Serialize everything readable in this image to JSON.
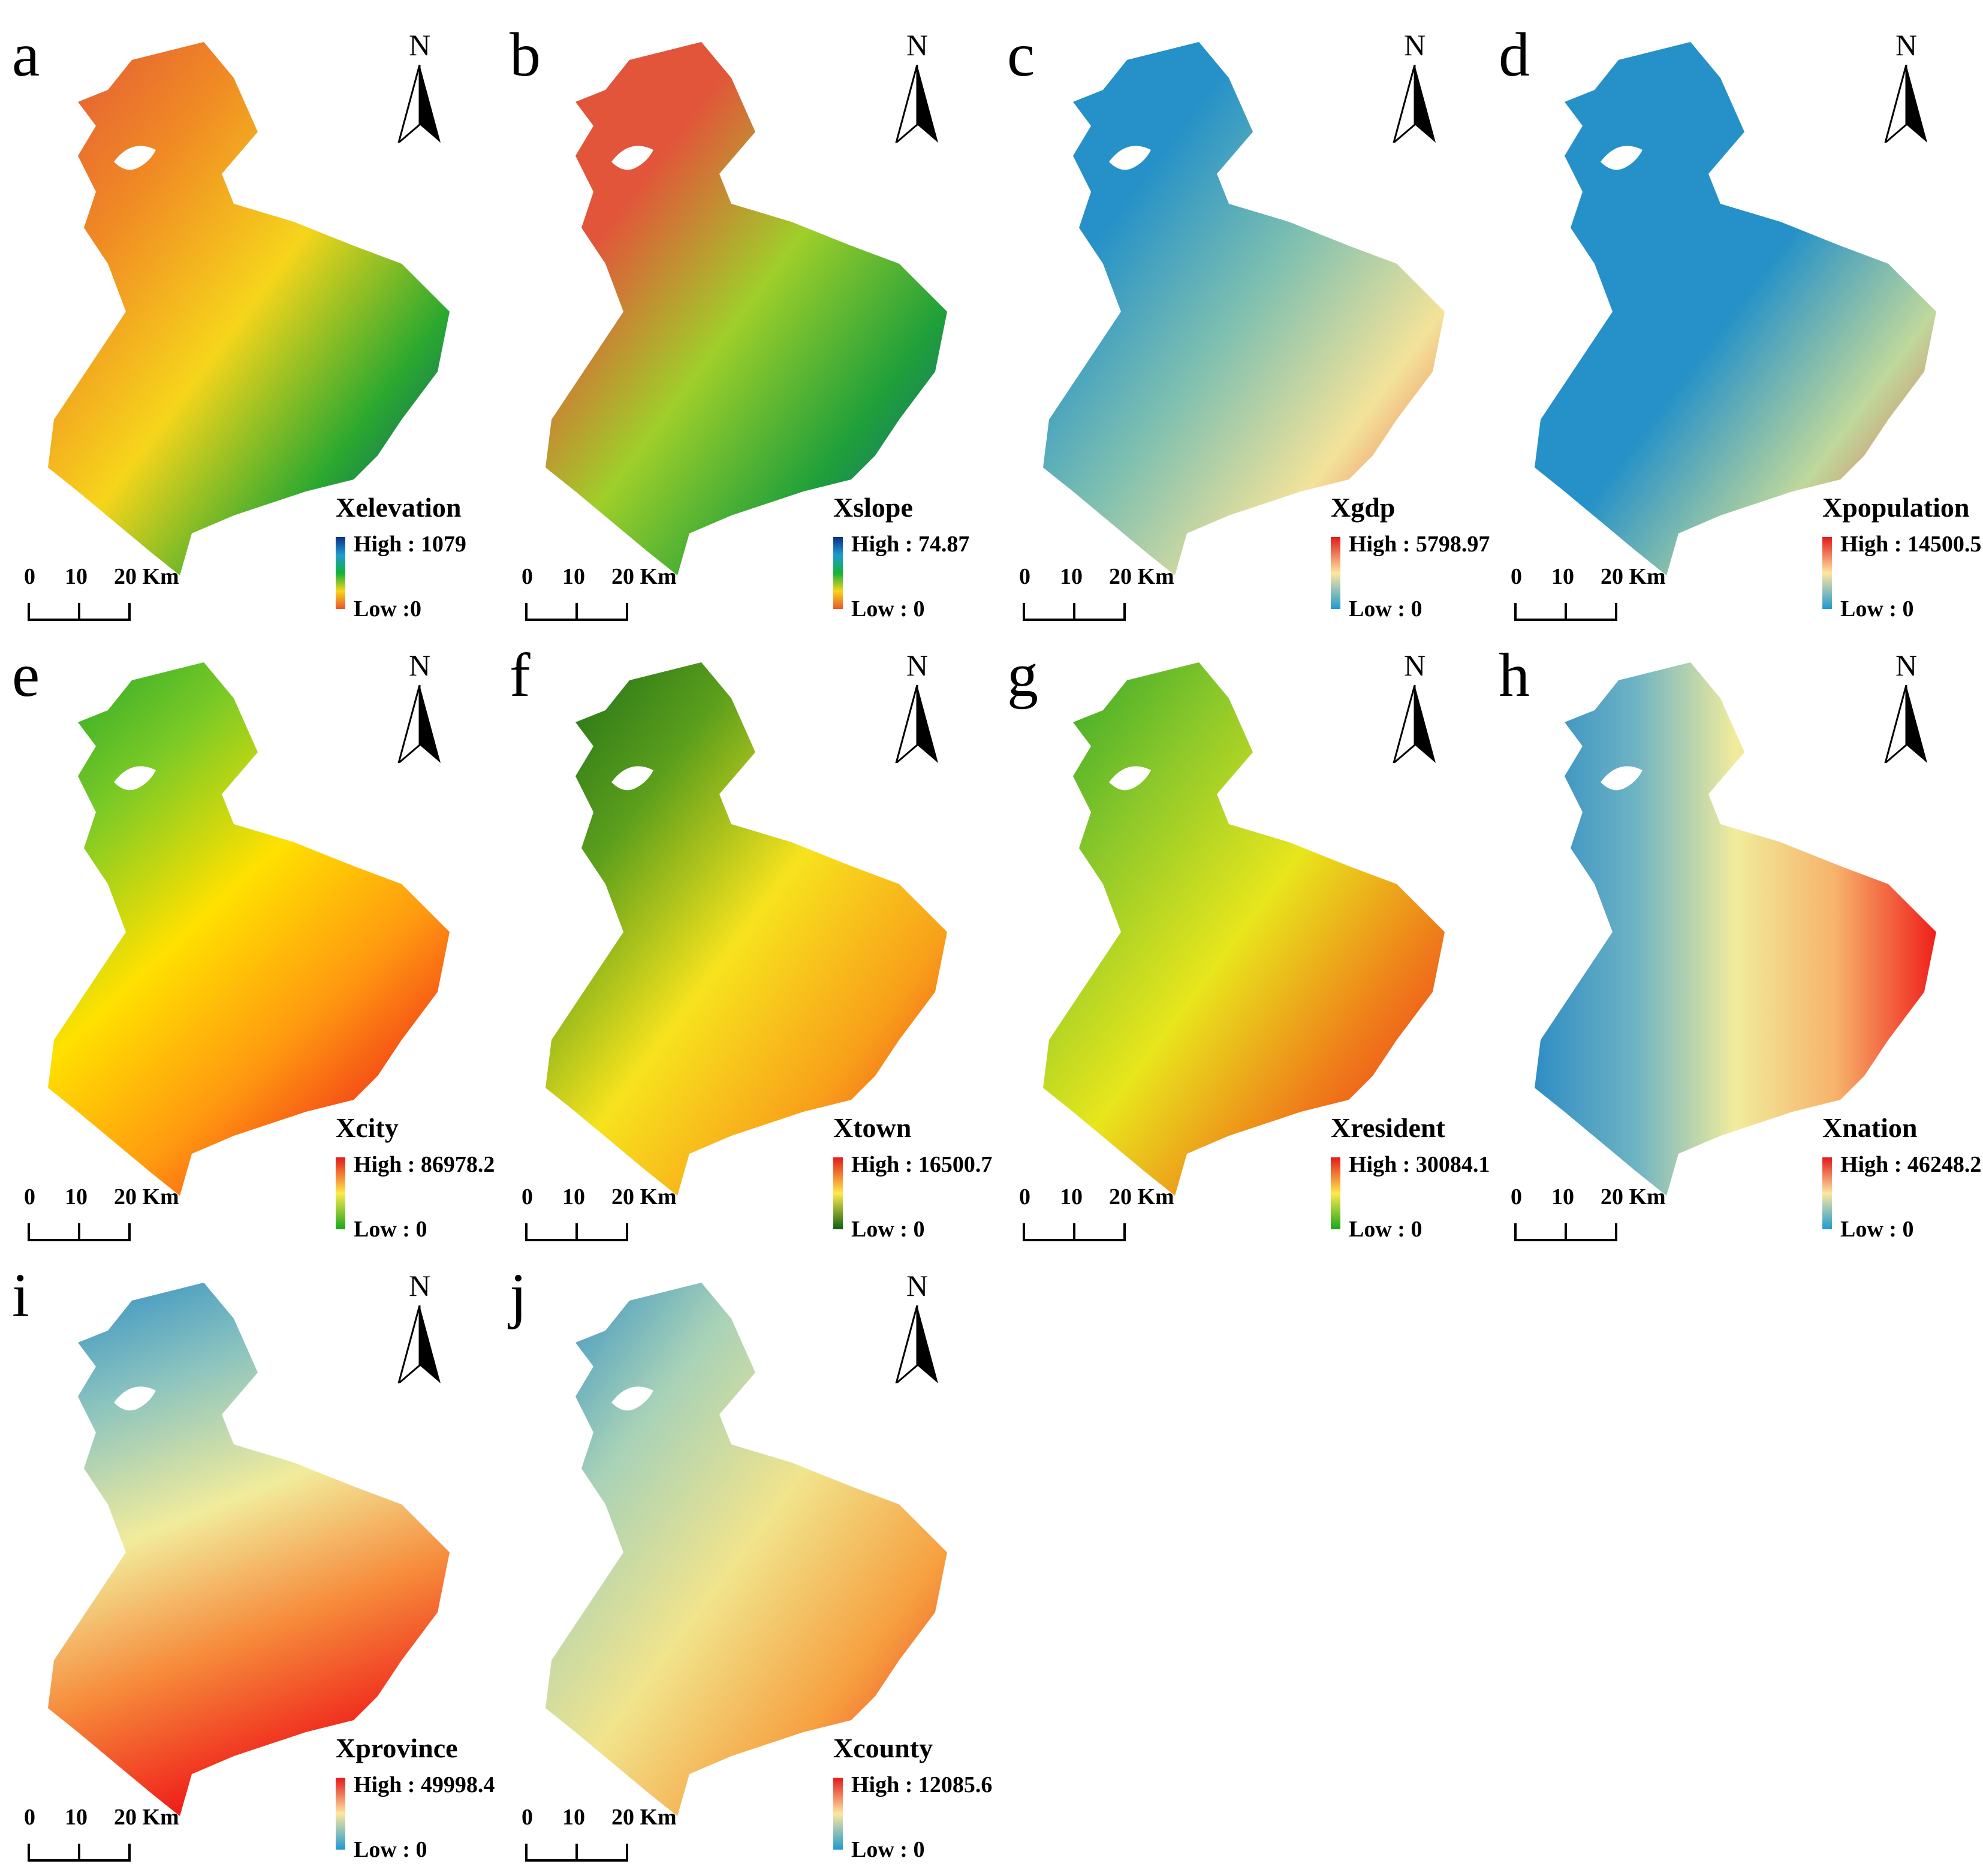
{
  "north_label": "N",
  "scale": {
    "t0": "0",
    "t1": "10",
    "t2": "20 Km"
  },
  "ramp_names": {
    "rainbow": [
      "#0b2f86",
      "#1f9bd1",
      "#0fb33a",
      "#f6d51b",
      "#e8572d"
    ],
    "rgy": [
      "#e41a1c",
      "#ffe94a",
      "#1aa81a"
    ],
    "rgy_dark": [
      "#e41a1c",
      "#ffe94a",
      "#0f5f12"
    ],
    "rb": [
      "#e41a1c",
      "#fde6a0",
      "#1f9bd1"
    ]
  },
  "panels": [
    {
      "letter": "a",
      "title": "Xelevation",
      "high": "High : 1079",
      "low": "Low :0",
      "ramp": "rainbow",
      "fill": [
        "#e2553a",
        "#f08a24",
        "#f6d51b",
        "#2aa82f",
        "#0b3a8c"
      ]
    },
    {
      "letter": "b",
      "title": "Xslope",
      "high": "High : 74.87",
      "low": "Low : 0",
      "ramp": "rainbow",
      "fill": [
        "#e2553a",
        "#e2553a",
        "#9fcf2a",
        "#1f9f3a",
        "#135a9c"
      ]
    },
    {
      "letter": "c",
      "title": "Xgdp",
      "high": "High : 5798.97",
      "low": "Low : 0",
      "ramp": "rb",
      "fill": [
        "#2591c8",
        "#2591c8",
        "#7fc0b0",
        "#f3e39a",
        "#e8382d"
      ]
    },
    {
      "letter": "d",
      "title": "Xpopulation",
      "high": "High : 14500.5",
      "low": "Low : 0",
      "ramp": "rb",
      "fill": [
        "#2591c8",
        "#2591c8",
        "#2591c8",
        "#bfd89c",
        "#e8382d"
      ]
    },
    {
      "letter": "e",
      "title": "Xcity",
      "high": "High : 86978.2",
      "low": "Low : 0",
      "ramp": "rgy",
      "fill": [
        "#22a52a",
        "#7cca26",
        "#ffe100",
        "#ff9a10",
        "#f02a1a"
      ]
    },
    {
      "letter": "f",
      "title": "Xtown",
      "high": "High : 16500.7",
      "low": "Low : 0",
      "ramp": "rgy_dark",
      "fill": [
        "#1a6a18",
        "#5c9f1c",
        "#f7e31d",
        "#f8a01a",
        "#ef2a1a"
      ]
    },
    {
      "letter": "g",
      "title": "Xresident",
      "high": "High : 30084.1",
      "low": "Low : 0",
      "ramp": "rgy",
      "fill": [
        "#2aa52a",
        "#8cc82a",
        "#e8e61c",
        "#ef7a1a",
        "#ef1f1a"
      ]
    },
    {
      "letter": "h",
      "title": "Xnation",
      "high": "High : 46248.2",
      "low": "Low : 0",
      "ramp": "rb",
      "fill": [
        "#2f8dc4",
        "#6db3c4",
        "#f1ec9c",
        "#f6b26a",
        "#ef1f1a"
      ]
    },
    {
      "letter": "i",
      "title": "Xprovince",
      "high": "High : 49998.4",
      "low": "Low : 0",
      "ramp": "rb",
      "fill": [
        "#2f8dc4",
        "#8cc4bf",
        "#f1ec9c",
        "#f68a3a",
        "#ef1f1a"
      ]
    },
    {
      "letter": "j",
      "title": "Xcounty",
      "high": "High : 12085.6",
      "low": "Low : 0",
      "ramp": "rb",
      "fill": [
        "#2f8dc4",
        "#a8d2b8",
        "#f1e48c",
        "#f6a040",
        "#ef1f1a"
      ]
    }
  ]
}
